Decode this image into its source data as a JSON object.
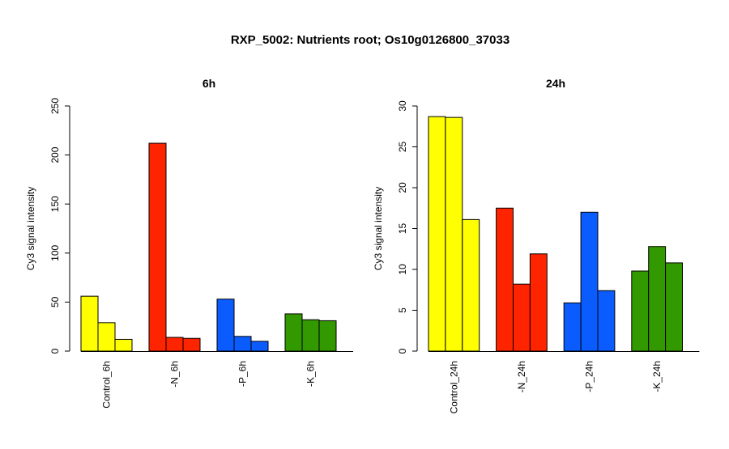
{
  "title": "RXP_5002: Nutrients root; Os10g0126800_37033",
  "colors": {
    "control": "#FFFF00",
    "nitrogen": "#FF2400",
    "phosphorus": "#0A5CFF",
    "potassium": "#339900"
  },
  "chart_data": [
    {
      "type": "bar",
      "title": "6h",
      "ylabel": "Cy3 signal intensity",
      "xlabel": "",
      "ylim": [
        0,
        250
      ],
      "yticks": [
        0,
        50,
        100,
        150,
        200,
        250
      ],
      "grid": false,
      "legend": "none",
      "categories": [
        "Control_6h",
        "-N_6h",
        "-P_6h",
        "-K_6h"
      ],
      "groups": [
        {
          "label": "Control_6h",
          "color": "#FFFF00",
          "values": [
            56,
            29,
            12
          ]
        },
        {
          "label": "-N_6h",
          "color": "#FF2400",
          "values": [
            212,
            14,
            13
          ]
        },
        {
          "label": "-P_6h",
          "color": "#0A5CFF",
          "values": [
            53,
            15,
            10
          ]
        },
        {
          "label": "-K_6h",
          "color": "#339900",
          "values": [
            38,
            32,
            31
          ]
        }
      ]
    },
    {
      "type": "bar",
      "title": "24h",
      "ylabel": "Cy3 signal intensity",
      "xlabel": "",
      "ylim": [
        0,
        30
      ],
      "yticks": [
        0,
        5,
        10,
        15,
        20,
        25,
        30
      ],
      "grid": false,
      "legend": "none",
      "categories": [
        "Control_24h",
        "-N_24h",
        "-P_24h",
        "-K_24h"
      ],
      "groups": [
        {
          "label": "Control_24h",
          "color": "#FFFF00",
          "values": [
            28.7,
            28.6,
            16.1
          ]
        },
        {
          "label": "-N_24h",
          "color": "#FF2400",
          "values": [
            17.5,
            8.2,
            11.9
          ]
        },
        {
          "label": "-P_24h",
          "color": "#0A5CFF",
          "values": [
            5.9,
            17.0,
            7.4
          ]
        },
        {
          "label": "-K_24h",
          "color": "#339900",
          "values": [
            9.8,
            12.8,
            10.8
          ]
        }
      ]
    }
  ]
}
